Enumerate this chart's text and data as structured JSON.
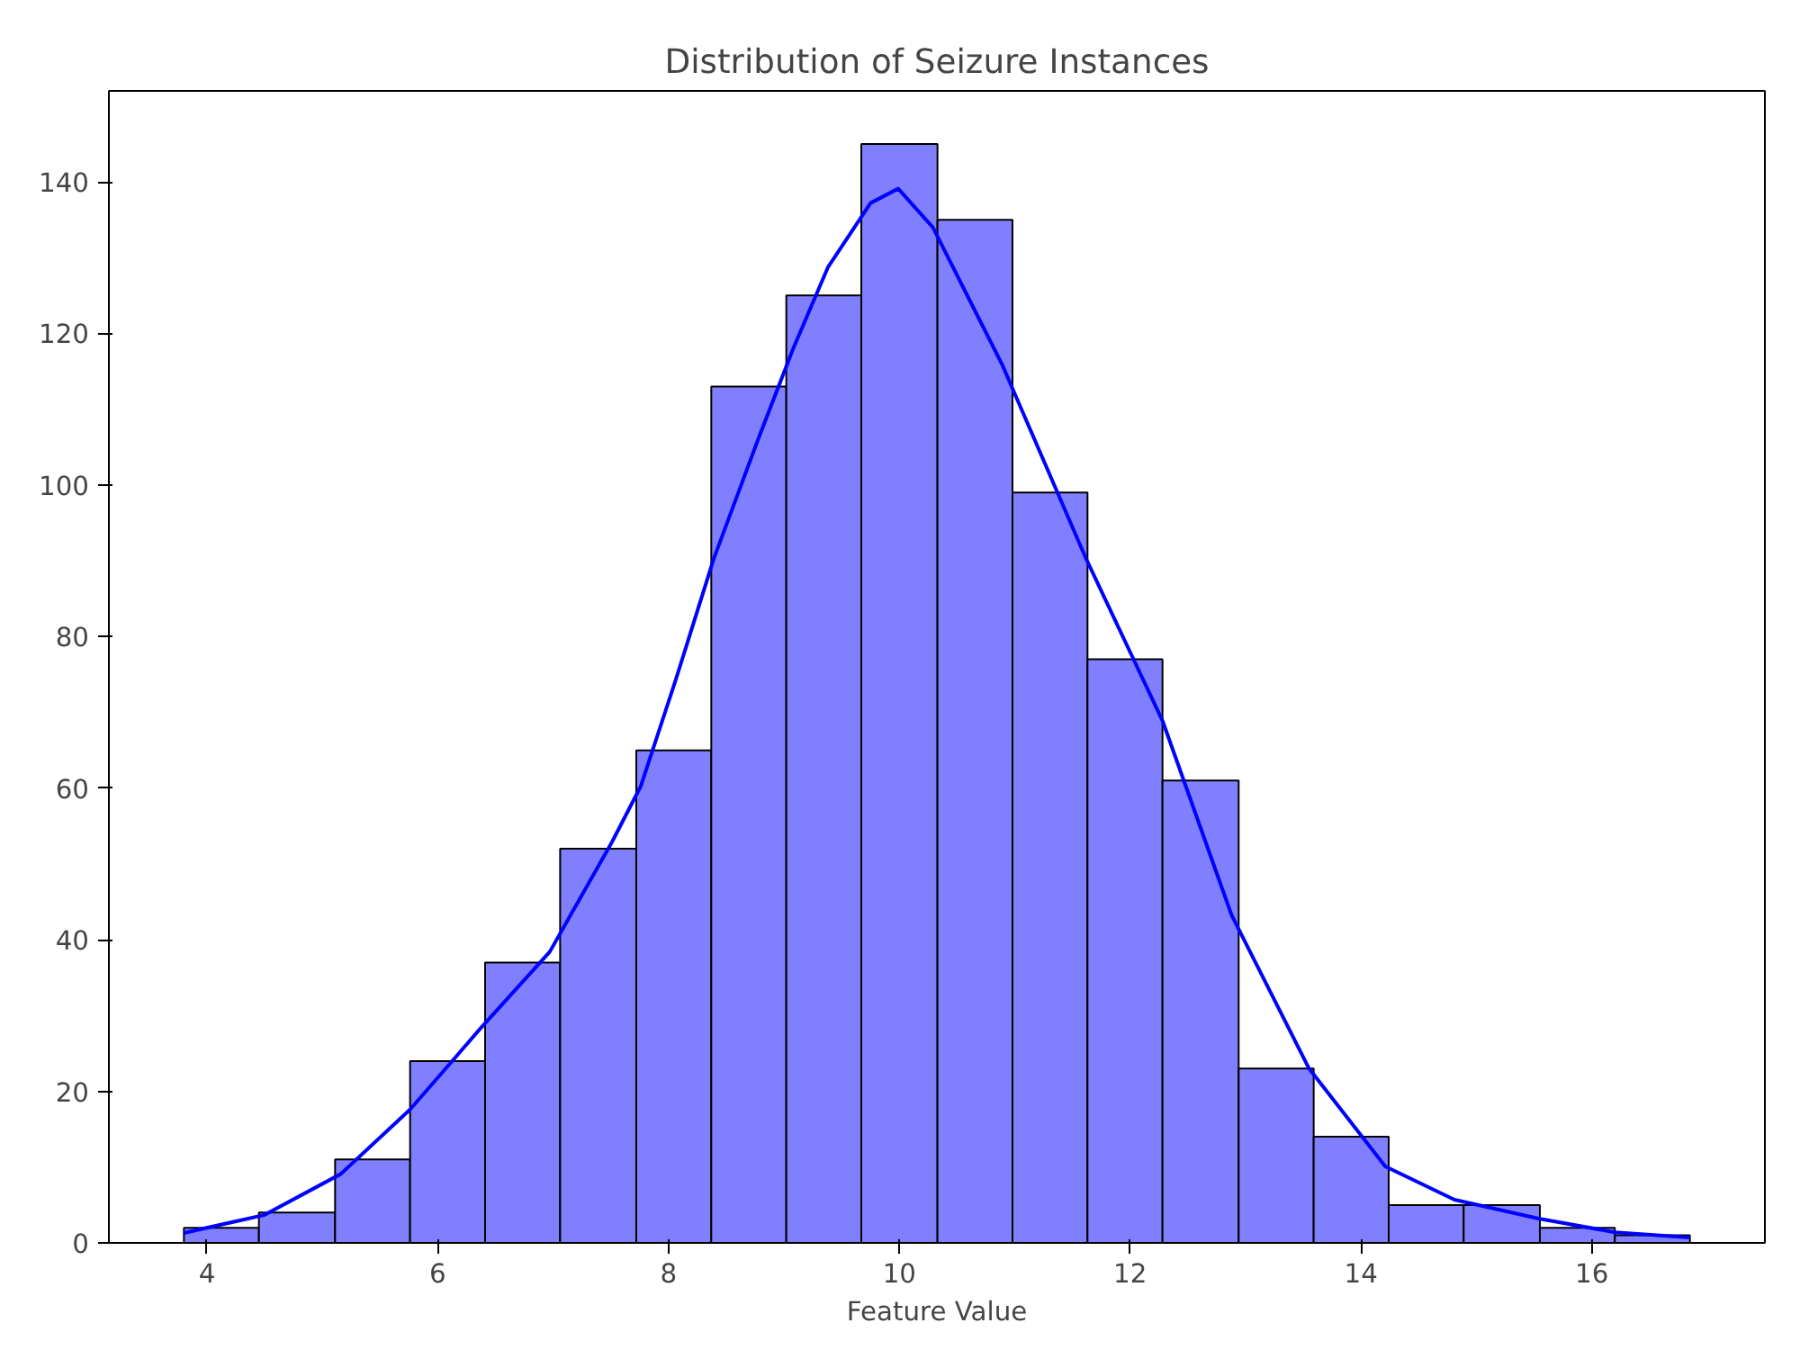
{
  "chart_data": {
    "type": "histogram",
    "title": "Distribution of Seizure Instances",
    "xlabel": "Feature Value",
    "bins": [
      3.8,
      4.45,
      5.11,
      5.76,
      6.41,
      7.06,
      7.72,
      8.37,
      9.02,
      9.67,
      10.33,
      10.98,
      11.63,
      12.28,
      12.94,
      13.59,
      14.24,
      14.89,
      15.55,
      16.2,
      16.85
    ],
    "values": [
      2,
      4,
      11,
      24,
      37,
      52,
      65,
      113,
      125,
      145,
      135,
      99,
      77,
      61,
      23,
      14,
      5,
      5,
      2,
      1
    ],
    "color": "#8080ff",
    "series": [
      {
        "type": "line",
        "color": "#0000ff",
        "x": [
          3.8,
          4.5,
          5.16,
          5.76,
          6.37,
          6.97,
          7.51,
          7.76,
          8.06,
          8.39,
          8.78,
          9.08,
          9.38,
          9.75,
          9.99,
          10.29,
          10.89,
          11.62,
          12.28,
          12.88,
          13.55,
          14.21,
          14.81,
          15.54,
          16.2,
          16.85
        ],
        "values": [
          1.3,
          3.7,
          9.1,
          17.6,
          28.3,
          38.4,
          52.9,
          60.3,
          74.2,
          90.2,
          106.2,
          118,
          128.7,
          137.2,
          139.1,
          134,
          115.9,
          90.2,
          68.9,
          43.2,
          23,
          10.1,
          5.7,
          3.2,
          1.4,
          0.7
        ]
      }
    ],
    "xlim": [
      3.15,
      17.5
    ],
    "ylim": [
      0,
      152
    ],
    "xticks": [
      4,
      6,
      8,
      10,
      12,
      14,
      16
    ],
    "yticks": [
      0,
      20,
      40,
      60,
      80,
      100,
      120,
      140
    ]
  }
}
